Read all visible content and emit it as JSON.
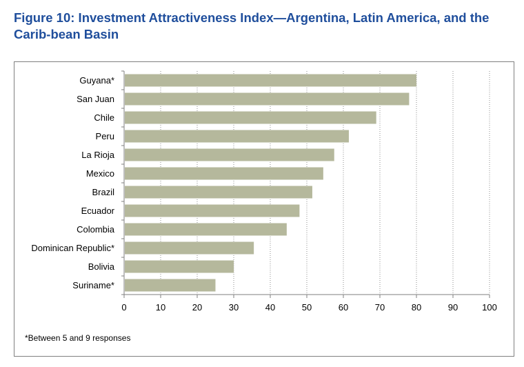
{
  "figure": {
    "title": "Figure 10: Investment Attractiveness Index—Argentina, Latin America, and the Carib-bean Basin",
    "footnote": "*Between 5 and 9 responses"
  },
  "colors": {
    "title": "#1f4e9c",
    "bar": "#b5b89c",
    "grid": "#8c8c8c",
    "axis": "#7f7f7f"
  },
  "chart_data": {
    "type": "bar",
    "orientation": "horizontal",
    "categories": [
      "Guyana*",
      "San Juan",
      "Chile",
      "Peru",
      "La Rioja",
      "Mexico",
      "Brazil",
      "Ecuador",
      "Colombia",
      "Dominican Republic*",
      "Bolivia",
      "Suriname*"
    ],
    "values": [
      80,
      78,
      69,
      61.5,
      57.5,
      54.5,
      51.5,
      48,
      44.5,
      35.5,
      30,
      25
    ],
    "xlim": [
      0,
      100
    ],
    "xticks": [
      0,
      10,
      20,
      30,
      40,
      50,
      60,
      70,
      80,
      90,
      100
    ],
    "grid": "vertical-dotted",
    "legend": "none"
  }
}
